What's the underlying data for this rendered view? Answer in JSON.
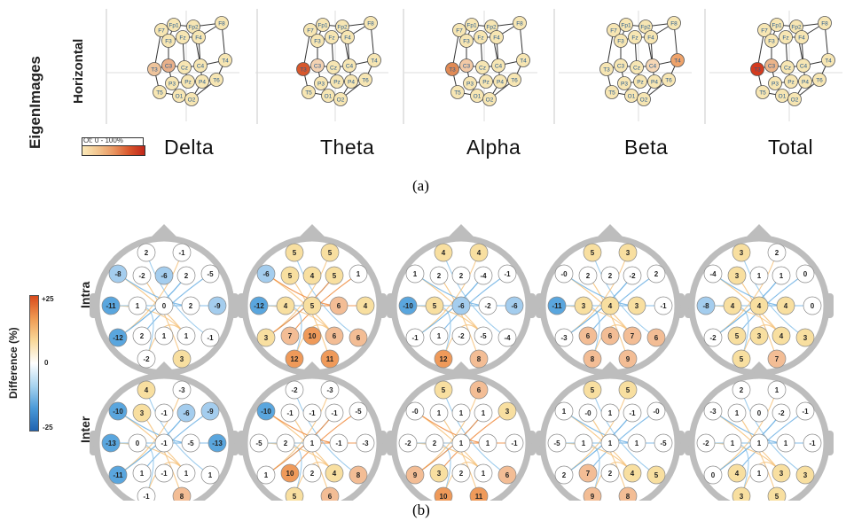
{
  "part_a": {
    "y_label": "EigenImages",
    "row_label": "Horizontal",
    "colorbar_label": "Ot: 0 - 100%",
    "caption": "(a)",
    "panels": [
      {
        "band": "Delta",
        "hot": {
          "C3": "#e8b08a",
          "T3": "#eec49c"
        }
      },
      {
        "band": "Theta",
        "hot": {
          "T3": "#d7572c",
          "C3": "#f3d2b2"
        }
      },
      {
        "band": "Alpha",
        "hot": {
          "T3": "#e08a55",
          "C3": "#f2c9a5"
        }
      },
      {
        "band": "Beta",
        "hot": {
          "T4": "#efa36a",
          "C4": "#f6d7b5"
        }
      },
      {
        "band": "Total",
        "hot": {
          "T3": "#d43b1f",
          "C3": "#ecb489"
        }
      }
    ],
    "electrodes": [
      "F7",
      "Fp1",
      "Fp2",
      "F8",
      "F3",
      "Fz",
      "F4",
      "T3",
      "C3",
      "Cz",
      "C4",
      "T4",
      "P3",
      "Pz",
      "P4",
      "T5",
      "T6",
      "O1",
      "O2"
    ]
  },
  "part_b": {
    "colorbar_label": "Difference (%)",
    "colorbar_ticks": [
      "+25",
      "0",
      "-25"
    ],
    "row_labels": [
      "Intra",
      "Inter"
    ],
    "caption": "(b)",
    "electrode_order": [
      "Fp1",
      "Fp2",
      "F7",
      "F3",
      "Fz",
      "F4",
      "F8",
      "T3",
      "C3",
      "Cz",
      "C4",
      "T4",
      "T5",
      "P3",
      "Pz",
      "P4",
      "T6",
      "O1",
      "O2"
    ],
    "heads": [
      {
        "row": "Intra",
        "values": [
          "2",
          "-1",
          "-8",
          "-2",
          "-6",
          "2",
          "-5",
          "-11",
          "1",
          "0",
          "2",
          "-9",
          "-12",
          "2",
          "1",
          "1",
          "-1",
          "-2",
          "3"
        ]
      },
      {
        "row": "Intra",
        "values": [
          "5",
          "5",
          "-6",
          "5",
          "4",
          "5",
          "1",
          "-12",
          "4",
          "5",
          "6",
          "4",
          "3",
          "7",
          "10",
          "6",
          "6",
          "12",
          "11"
        ]
      },
      {
        "row": "Intra",
        "values": [
          "4",
          "4",
          "1",
          "2",
          "2",
          "-4",
          "-1",
          "-10",
          "5",
          "-6",
          "-2",
          "-6",
          "-1",
          "1",
          "-2",
          "-5",
          "-4",
          "12",
          "8"
        ]
      },
      {
        "row": "Intra",
        "values": [
          "5",
          "3",
          "-0",
          "2",
          "2",
          "-2",
          "2",
          "-11",
          "3",
          "4",
          "3",
          "-1",
          "-3",
          "6",
          "6",
          "7",
          "6",
          "8",
          "9"
        ]
      },
      {
        "row": "Intra",
        "values": [
          "3",
          "2",
          "-4",
          "3",
          "1",
          "1",
          "0",
          "-8",
          "4",
          "4",
          "4",
          "0",
          "-2",
          "5",
          "3",
          "4",
          "3",
          "5",
          "7"
        ]
      },
      {
        "row": "Inter",
        "values": [
          "4",
          "-3",
          "-10",
          "3",
          "-1",
          "-6",
          "-9",
          "-13",
          "0",
          "-1",
          "-5",
          "-13",
          "-11",
          "1",
          "-1",
          "1",
          "1",
          "-1",
          "8"
        ]
      },
      {
        "row": "Inter",
        "values": [
          "-2",
          "-3",
          "-10",
          "-1",
          "-1",
          "-1",
          "-5",
          "-5",
          "2",
          "1",
          "-1",
          "-3",
          "1",
          "10",
          "2",
          "4",
          "8",
          "5",
          "6"
        ]
      },
      {
        "row": "Inter",
        "values": [
          "5",
          "6",
          "-0",
          "1",
          "1",
          "1",
          "3",
          "-2",
          "2",
          "1",
          "1",
          "-1",
          "9",
          "3",
          "2",
          "1",
          "6",
          "10",
          "11"
        ]
      },
      {
        "row": "Inter",
        "values": [
          "5",
          "5",
          "1",
          "-0",
          "1",
          "-1",
          "-0",
          "-5",
          "1",
          "1",
          "1",
          "-5",
          "2",
          "7",
          "2",
          "4",
          "5",
          "9",
          "8"
        ]
      },
      {
        "row": "Inter",
        "values": [
          "2",
          "1",
          "-3",
          "1",
          "0",
          "-2",
          "-1",
          "-2",
          "1",
          "1",
          "1",
          "-1",
          "0",
          "4",
          "1",
          "3",
          "3",
          "3",
          "5"
        ]
      }
    ]
  }
}
